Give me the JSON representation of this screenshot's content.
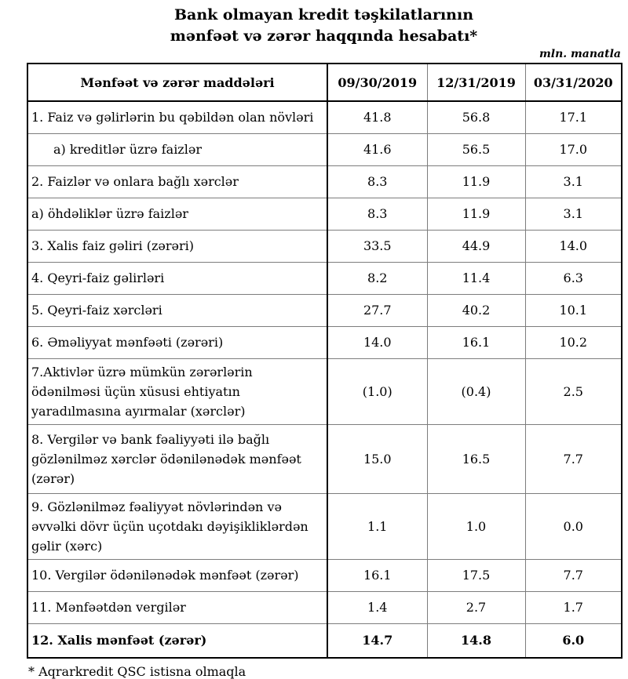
{
  "title": {
    "line1": "Bank olmayan kredit təşkilatlarının",
    "line2": "mənfəət və zərər haqqında hesabatı*"
  },
  "unit_note": "mln. manatla",
  "table": {
    "header": {
      "label": "Mənfəət və zərər maddələri",
      "columns": [
        "09/30/2019",
        "12/31/2019",
        "03/31/2020"
      ]
    },
    "rows": [
      {
        "label": "1. Faiz və gəlirlərin bu qəbildən olan növləri",
        "values": [
          "41.8",
          "56.8",
          "17.1"
        ],
        "indent": false,
        "bold": false
      },
      {
        "label": "a) kreditlər üzrə faizlər",
        "values": [
          "41.6",
          "56.5",
          "17.0"
        ],
        "indent": true,
        "bold": false
      },
      {
        "label": "2. Faizlər və onlara bağlı xərclər",
        "values": [
          "8.3",
          "11.9",
          "3.1"
        ],
        "indent": false,
        "bold": false
      },
      {
        "label": "a) öhdəliklər üzrə faizlər",
        "values": [
          "8.3",
          "11.9",
          "3.1"
        ],
        "indent": false,
        "bold": false
      },
      {
        "label": "3. Xalis faiz gəliri (zərəri)",
        "values": [
          "33.5",
          "44.9",
          "14.0"
        ],
        "indent": false,
        "bold": false
      },
      {
        "label": "4. Qeyri-faiz gəlirləri",
        "values": [
          "8.2",
          "11.4",
          "6.3"
        ],
        "indent": false,
        "bold": false
      },
      {
        "label": "5. Qeyri-faiz xərcləri",
        "values": [
          "27.7",
          "40.2",
          "10.1"
        ],
        "indent": false,
        "bold": false
      },
      {
        "label": "6. Əməliyyat mənfəəti (zərəri)",
        "values": [
          "14.0",
          "16.1",
          "10.2"
        ],
        "indent": false,
        "bold": false
      },
      {
        "label": "7.Aktivlər üzrə mümkün zərərlərin ödənilməsi üçün xüsusi ehtiyatın yaradılmasına ayırmalar (xərclər)",
        "values": [
          "(1.0)",
          "(0.4)",
          "2.5"
        ],
        "indent": false,
        "bold": false
      },
      {
        "label": "8. Vergilər və bank fəaliyyəti ilə bağlı gözlənilməz xərclər ödənilənədək mənfəət (zərər)",
        "values": [
          "15.0",
          "16.5",
          "7.7"
        ],
        "indent": false,
        "bold": false
      },
      {
        "label": "9. Gözlənilməz fəaliyyət növlərindən və əvvəlki dövr üçün uçotdakı dəyişikliklərdən gəlir (xərc)",
        "values": [
          "1.1",
          "1.0",
          "0.0"
        ],
        "indent": false,
        "bold": false
      },
      {
        "label": "10. Vergilər ödənilənədək mənfəət (zərər)",
        "values": [
          "16.1",
          "17.5",
          "7.7"
        ],
        "indent": false,
        "bold": false
      },
      {
        "label": "11. Mənfəətdən vergilər",
        "values": [
          "1.4",
          "2.7",
          "1.7"
        ],
        "indent": false,
        "bold": false
      },
      {
        "label": "12. Xalis mənfəət (zərər)",
        "values": [
          "14.7",
          "14.8",
          "6.0"
        ],
        "indent": false,
        "bold": true
      }
    ]
  },
  "footnote": "* Aqrarkredit QSC istisna olmaqla",
  "colors": {
    "background": "#ffffff",
    "text": "#000000",
    "border_strong": "#000000",
    "border_light": "#7d7d7d"
  }
}
